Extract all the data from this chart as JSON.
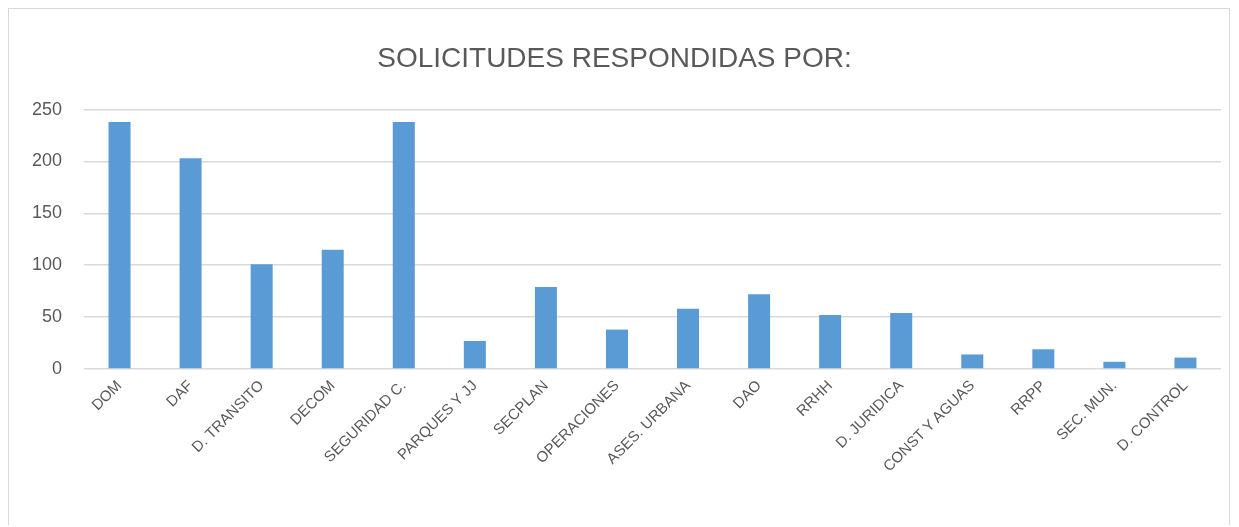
{
  "chart_data": {
    "type": "bar",
    "title": "SOLICITUDES RESPONDIDAS POR:",
    "categories": [
      "DOM",
      "DAF",
      "D. TRANSITO",
      "DECOM",
      "SEGURIDAD C.",
      "PARQUES Y JJ",
      "SECPLAN",
      "OPERACIONES",
      "ASES. URBANA",
      "DAO",
      "RRHH",
      "D. JURIDICA",
      "CONST Y AGUAS",
      "RRPP",
      "SEC. MUN.",
      "D. CONTROL"
    ],
    "values": [
      238,
      203,
      101,
      115,
      238,
      27,
      79,
      38,
      58,
      72,
      52,
      54,
      14,
      19,
      7,
      11
    ],
    "color": "#5b9bd5",
    "ylim": [
      0,
      250
    ],
    "yticks": [
      0,
      50,
      100,
      150,
      200,
      250
    ],
    "grid": "y"
  }
}
